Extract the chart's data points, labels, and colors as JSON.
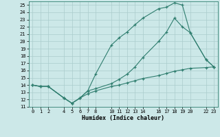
{
  "bg_color": "#cce8e8",
  "line_color": "#2e7d6e",
  "grid_color": "#aacccc",
  "xlabel": "Humidex (Indice chaleur)",
  "xlim": [
    -0.5,
    23.5
  ],
  "ylim": [
    11,
    25.5
  ],
  "xticks": [
    0,
    1,
    2,
    4,
    5,
    6,
    7,
    8,
    10,
    11,
    12,
    13,
    14,
    16,
    17,
    18,
    19,
    20,
    22,
    23
  ],
  "yticks": [
    11,
    12,
    13,
    14,
    15,
    16,
    17,
    18,
    19,
    20,
    21,
    22,
    23,
    24,
    25
  ],
  "line1_x": [
    0,
    1,
    2,
    4,
    5,
    6,
    7,
    8,
    10,
    11,
    12,
    13,
    14,
    16,
    17,
    18,
    19,
    20,
    22,
    23
  ],
  "line1_y": [
    14,
    13.8,
    13.8,
    12.2,
    11.5,
    12.2,
    13.2,
    15.5,
    19.5,
    20.5,
    21.3,
    22.3,
    23.2,
    24.5,
    24.7,
    25.3,
    25.0,
    21.2,
    17.5,
    16.5
  ],
  "line2_x": [
    0,
    1,
    2,
    4,
    5,
    6,
    7,
    8,
    10,
    11,
    12,
    13,
    14,
    16,
    17,
    18,
    19,
    20,
    22,
    23
  ],
  "line2_y": [
    14,
    13.8,
    13.8,
    12.2,
    11.5,
    12.2,
    13.2,
    13.5,
    14.2,
    14.8,
    15.5,
    16.5,
    17.8,
    20.0,
    21.3,
    23.2,
    22.0,
    21.2,
    17.5,
    16.5
  ],
  "line3_x": [
    0,
    1,
    2,
    4,
    5,
    6,
    7,
    8,
    10,
    11,
    12,
    13,
    14,
    16,
    17,
    18,
    19,
    20,
    22,
    23
  ],
  "line3_y": [
    14,
    13.8,
    13.8,
    12.2,
    11.5,
    12.2,
    12.8,
    13.2,
    13.8,
    14.0,
    14.3,
    14.6,
    14.9,
    15.3,
    15.6,
    15.9,
    16.1,
    16.3,
    16.4,
    16.5
  ]
}
